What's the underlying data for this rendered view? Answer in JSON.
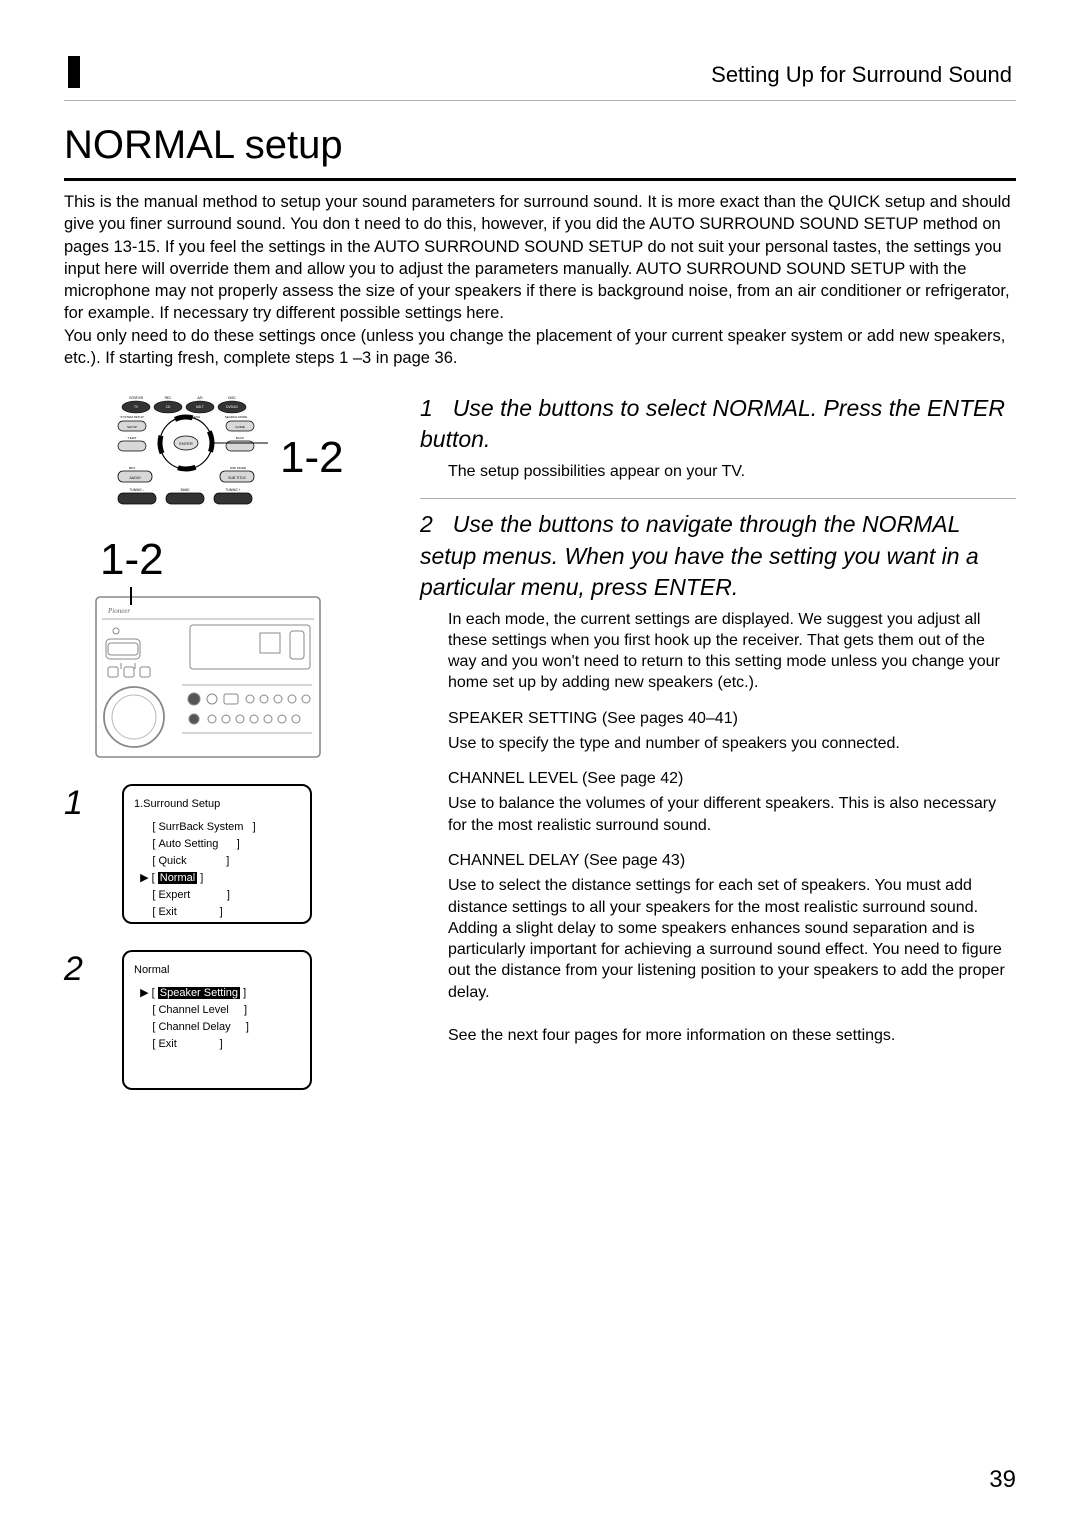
{
  "header": {
    "section_label": "Setting Up for Surround Sound"
  },
  "title": "NORMAL setup",
  "intro": {
    "p1": "This is the manual method to setup your sound parameters for surround sound. It is more exact than the QUICK setup and should give you finer surround sound. You don t need to do this, however, if you did the AUTO SURROUND SOUND SETUP method on pages 13-15. If you feel the settings in the AUTO SURROUND SOUND SETUP do not suit your personal tastes, the settings you input here will override them and allow you to adjust the parameters manually. AUTO SURROUND SOUND SETUP with the microphone may not properly assess the size of your speakers if there is background noise, from an air conditioner or refrigerator, for example. If necessary try different possible settings here.",
    "p2": "You only need to do these settings once (unless you change the placement of your current speaker system or add new speakers, etc.). If starting fresh, complete steps 1 –3 in page 36."
  },
  "left": {
    "ref_a": "1-2",
    "ref_b": "1-2",
    "osd1": {
      "step": "1",
      "title": "1.Surround Setup",
      "items": [
        "SurrBack System",
        "Auto Setting",
        "Quick",
        "Normal",
        "Expert",
        "Exit"
      ],
      "selected_index": 3
    },
    "osd2": {
      "step": "2",
      "title": "Normal",
      "items": [
        "Speaker Setting",
        "Channel Level",
        "Channel Delay",
        "Exit"
      ],
      "selected_index": 0
    },
    "remote_labels": {
      "top_row": [
        "TV",
        "CD",
        "MD.T",
        "DVD/LD"
      ],
      "top_sm": [
        "VCR/UVO",
        "BEC",
        "A/D",
        "DISC"
      ],
      "left_labels": [
        "SYSTEM SETUP",
        "T.EDIT"
      ],
      "right_labels": [
        "T.MULTI",
        "ACCESS",
        "SEARCH MODE",
        "GUIDE",
        "BACK"
      ],
      "center": "ENTER",
      "mid_row": [
        "AUDIO",
        "SUB TITLE"
      ],
      "low_labels": [
        "MPX",
        "DSP MODE"
      ],
      "bottom": [
        "TUNING –",
        "BAND",
        "TUNING +"
      ]
    }
  },
  "steps": {
    "s1": {
      "num": "1",
      "head_a": "Use the ",
      "head_b": " buttons to select NORMAL. Press the ENTER button.",
      "sub": "The setup possibilities appear on your TV."
    },
    "s2": {
      "num": "2",
      "head_a": "Use the ",
      "head_b": " buttons to navigate through the NORMAL setup menus. When you have the setting you want in a particular menu, press ENTER.",
      "sub": "In each mode, the current settings are displayed. We suggest you adjust all these settings when you first hook up the receiver. That gets them out of the way and you won't need to return to this setting mode unless you change your home set up by adding new speakers (etc.)."
    },
    "speaker": {
      "head": "SPEAKER SETTING (See pages 40–41)",
      "body": "Use to specify the type and number of speakers you connected."
    },
    "level": {
      "head": "CHANNEL LEVEL (See page 42)",
      "body": "Use to balance the volumes of your different speakers. This is also necessary for the most realistic surround sound."
    },
    "delay": {
      "head": "CHANNEL DELAY (See page 43)",
      "body": "Use to select the distance settings for each set of speakers. You must add distance settings to all your speakers for the most realistic surround sound. Adding a slight delay to some speakers enhances sound separation and is particularly important for achieving a surround sound effect. You need to figure out the distance from your listening position to your speakers to add the proper delay."
    },
    "footer": "See the next four pages for more information on these settings."
  },
  "page_number": "39",
  "colors": {
    "text": "#000000",
    "bg": "#ffffff",
    "rule_thin": "#b0b0b0",
    "svg_stroke": "#555555",
    "svg_fill": "#cfcfcf"
  }
}
